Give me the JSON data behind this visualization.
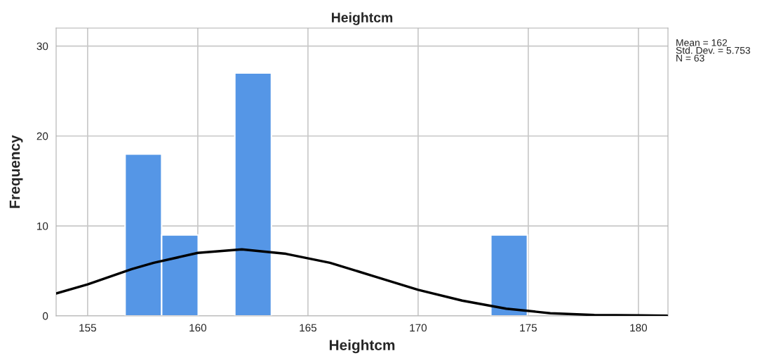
{
  "chart_data": {
    "type": "histogram",
    "title": "Heightcm",
    "xlabel": "Heightcm",
    "ylabel": "Frequency",
    "bins": [
      156.7,
      158.36,
      160.02,
      161.68,
      163.34,
      165.0,
      166.66,
      168.32,
      169.98,
      171.64,
      173.3,
      174.96
    ],
    "values": [
      18,
      9,
      0,
      27,
      0,
      0,
      0,
      0,
      0,
      0,
      9
    ],
    "color": "#5596e6",
    "series": [
      {
        "type": "line",
        "color": "#000000",
        "x": [
          153.57,
          155,
          157,
          158,
          160,
          162,
          164,
          166,
          168,
          170,
          172,
          174,
          176,
          178,
          180,
          181.3
        ],
        "values": [
          2.5,
          3.5,
          5.2,
          5.9,
          7.0,
          7.4,
          6.9,
          5.9,
          4.4,
          2.9,
          1.7,
          0.8,
          0.3,
          0.1,
          0.05,
          0.02
        ]
      }
    ],
    "xlim": [
      153.57,
      181.34
    ],
    "xticks": [
      155,
      160,
      165,
      170,
      175,
      180
    ],
    "ylim": [
      0,
      32
    ],
    "yticks": [
      0,
      10,
      20,
      30
    ],
    "grid": true,
    "annotations": [
      "Mean = 162",
      "Std. Dev. = 5.753",
      "N = 63"
    ]
  }
}
